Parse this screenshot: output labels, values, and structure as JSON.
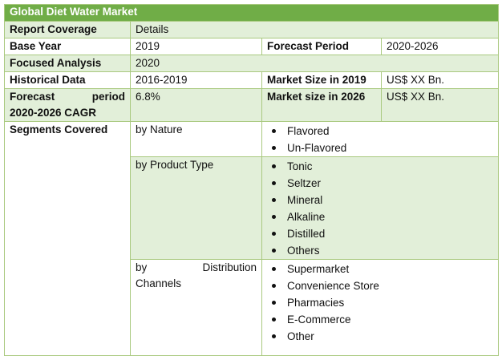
{
  "title": "Global Diet Water Market",
  "header": {
    "label": "Report Coverage",
    "value": "Details"
  },
  "base_year": {
    "label": "Base Year",
    "value": "2019",
    "label2": "Forecast Period",
    "value2": "2020-2026"
  },
  "focused_analysis": {
    "label": "Focused Analysis",
    "value": "2020"
  },
  "historical": {
    "label": "Historical Data",
    "value": "2016-2019",
    "label2": "Market Size in 2019",
    "value2": "US$ XX Bn."
  },
  "forecast": {
    "label_line1_a": "Forecast",
    "label_line1_b": "period",
    "label_line2": "2020-2026 CAGR",
    "value": "6.8%",
    "label2": "Market size in 2026",
    "value2": "US$ XX Bn."
  },
  "segments": {
    "label": "Segments Covered",
    "nature": {
      "label": "by Nature",
      "items": [
        "Flavored",
        "Un-Flavored"
      ]
    },
    "product": {
      "label": "by Product Type",
      "items": [
        "Tonic",
        "Seltzer",
        "Mineral",
        "Alkaline",
        "Distilled",
        "Others"
      ]
    },
    "distribution": {
      "label_line1_a": "by",
      "label_line1_b": "Distribution",
      "label_line2": "Channels",
      "items": [
        "Supermarket",
        "Convenience Store",
        "Pharmacies",
        "E-Commerce",
        "Other"
      ]
    }
  },
  "colors": {
    "title_bg": "#70ad47",
    "band": "#e2efd9",
    "border": "#a9c97f"
  }
}
